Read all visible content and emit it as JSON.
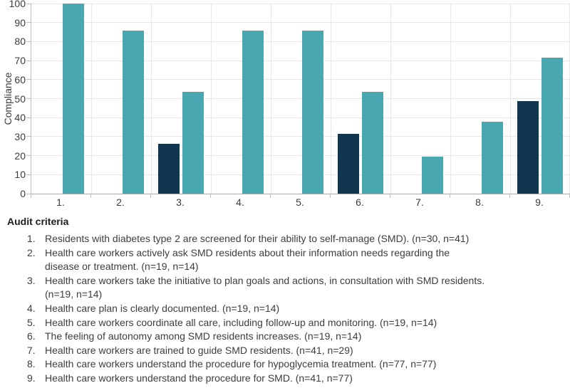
{
  "chart_data": {
    "type": "bar",
    "title": "",
    "xlabel": "",
    "ylabel": "Compliance",
    "ylim": [
      0,
      100
    ],
    "ytick_step": 10,
    "grid": true,
    "legend": "none",
    "categories": [
      "1.",
      "2.",
      "3.",
      "4.",
      "5.",
      "6.",
      "7.",
      "8.",
      "9."
    ],
    "series": [
      {
        "name": "series-1-dark",
        "color": "#113750",
        "values": [
          null,
          null,
          26.3,
          null,
          null,
          31.6,
          null,
          null,
          48.8
        ]
      },
      {
        "name": "series-2-teal",
        "color": "#48a7b1",
        "values": [
          100,
          85.7,
          53.6,
          85.7,
          85.7,
          53.6,
          19.3,
          37.7,
          71.4
        ]
      }
    ]
  },
  "criteria": {
    "heading": "Audit criteria",
    "items": [
      {
        "num": "1.",
        "text": "Residents with diabetes type 2 are screened for their ability to self-manage (SMD). (n=30, n=41)"
      },
      {
        "num": "2.",
        "text": "Health care workers actively ask SMD residents about their information needs regarding the disease or treatment. (n=19, n=14)"
      },
      {
        "num": "3.",
        "text": "Health care workers take the initiative to plan goals and actions, in consultation with SMD residents. (n=19, n=14)"
      },
      {
        "num": "4.",
        "text": "Health care plan is clearly documented. (n=19, n=14)"
      },
      {
        "num": "5.",
        "text": "Health care workers coordinate all care, including follow-up and monitoring. (n=19, n=14)"
      },
      {
        "num": "6.",
        "text": "The feeling of autonomy among SMD residents increases. (n=19, n=14)"
      },
      {
        "num": "7.",
        "text": "Health care workers are trained to guide SMD residents. (n=41, n=29)"
      },
      {
        "num": "8.",
        "text": "Health care workers understand the procedure for hypoglycemia treatment. (n=77, n=77)"
      },
      {
        "num": "9.",
        "text": "Health care workers understand the procedure for SMD. (n=41, n=77)"
      }
    ]
  }
}
